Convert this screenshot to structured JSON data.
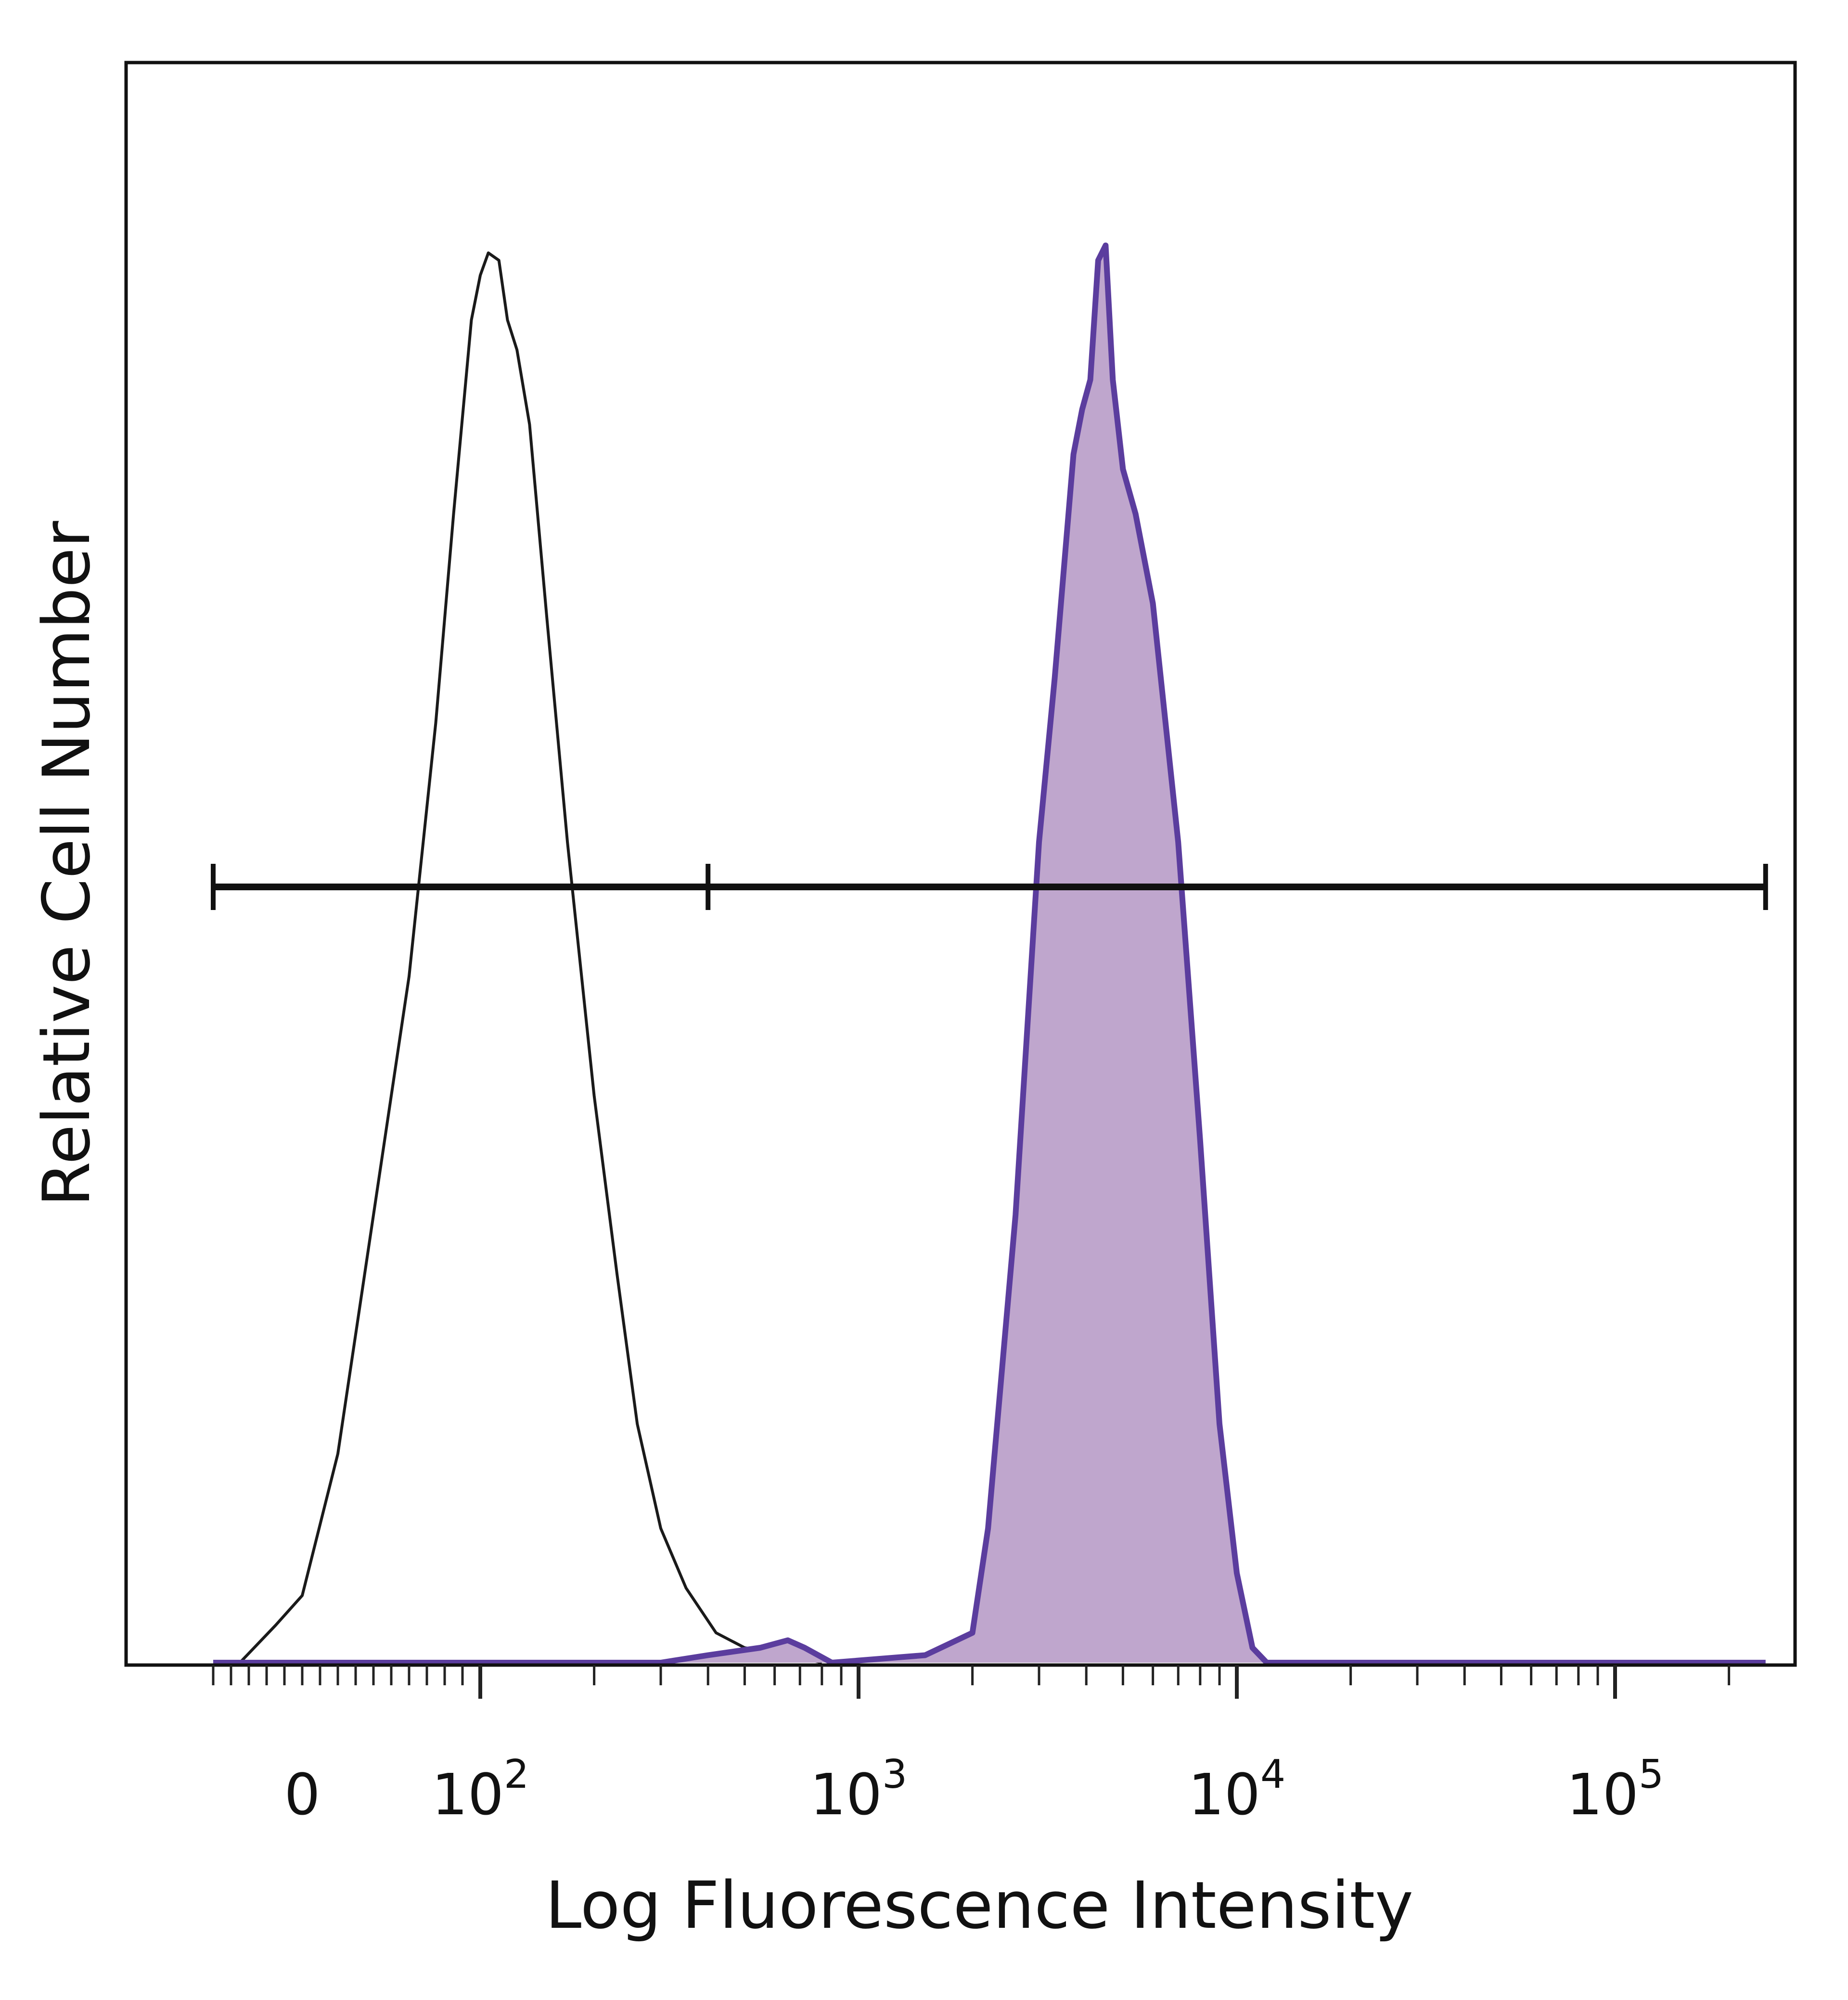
{
  "chart_data": {
    "type": "area",
    "title": "",
    "xlabel": "Log Fluorescence Intensity",
    "ylabel": "Relative Cell Number",
    "x_scale": "biexponential",
    "xlim": [
      -50,
      250000
    ],
    "ylim": [
      0,
      100
    ],
    "x_tick_labels": [
      {
        "value": 0,
        "base": "0",
        "exp": ""
      },
      {
        "value": 100,
        "base": "10",
        "exp": "2"
      },
      {
        "value": 1000,
        "base": "10",
        "exp": "3"
      },
      {
        "value": 10000,
        "base": "10",
        "exp": "4"
      },
      {
        "value": 100000,
        "base": "10",
        "exp": "5"
      }
    ],
    "gate": {
      "x_start": -50,
      "x_divider": 400,
      "x_end": 250000,
      "y": 52
    },
    "grid": false,
    "legend": "none",
    "series": [
      {
        "style": "outline",
        "color": "#1a1a1a",
        "points": [
          [
            -35,
            0
          ],
          [
            -15,
            2.5
          ],
          [
            0,
            4.5
          ],
          [
            20,
            14
          ],
          [
            40,
            30
          ],
          [
            60,
            46
          ],
          [
            75,
            63
          ],
          [
            85,
            77
          ],
          [
            95,
            90
          ],
          [
            100,
            93
          ],
          [
            105,
            94.5
          ],
          [
            112,
            94
          ],
          [
            118,
            90
          ],
          [
            125,
            88
          ],
          [
            135,
            83
          ],
          [
            150,
            70
          ],
          [
            170,
            55
          ],
          [
            200,
            38
          ],
          [
            230,
            26
          ],
          [
            260,
            16
          ],
          [
            300,
            9
          ],
          [
            350,
            5
          ],
          [
            420,
            2
          ],
          [
            500,
            1
          ],
          [
            650,
            0.5
          ],
          [
            800,
            0
          ]
        ]
      },
      {
        "style": "filled",
        "color": "#5b3d9e",
        "fill": "#bfa6cd",
        "points": [
          [
            -50,
            0
          ],
          [
            300,
            0
          ],
          [
            400,
            0.5
          ],
          [
            550,
            1
          ],
          [
            650,
            1.5
          ],
          [
            720,
            1
          ],
          [
            850,
            0
          ],
          [
            1500,
            0.5
          ],
          [
            2000,
            2
          ],
          [
            2200,
            9
          ],
          [
            2600,
            30
          ],
          [
            3000,
            55
          ],
          [
            3300,
            66
          ],
          [
            3700,
            81
          ],
          [
            3900,
            84
          ],
          [
            4100,
            86
          ],
          [
            4300,
            94
          ],
          [
            4500,
            95
          ],
          [
            4700,
            86
          ],
          [
            5000,
            80
          ],
          [
            5400,
            77
          ],
          [
            6000,
            71
          ],
          [
            7000,
            55
          ],
          [
            8000,
            35
          ],
          [
            9000,
            16
          ],
          [
            10000,
            6
          ],
          [
            11000,
            1
          ],
          [
            12000,
            0
          ],
          [
            250000,
            0
          ]
        ]
      }
    ]
  }
}
